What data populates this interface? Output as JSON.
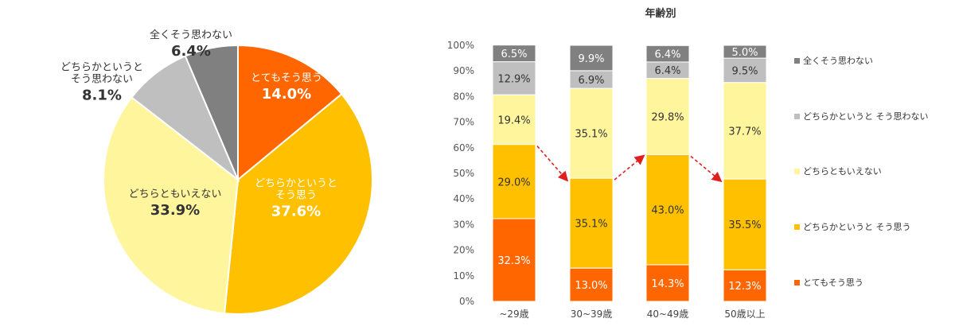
{
  "chart_data": [
    {
      "type": "pie",
      "slices": [
        {
          "label": "とてもそう思う",
          "value": 14.0,
          "pct": "14.0%",
          "color": "#FF6600"
        },
        {
          "label": "どちらかというと\nそう思う",
          "value": 37.6,
          "pct": "37.6%",
          "color": "#FFC000"
        },
        {
          "label": "どちらともいえない",
          "value": 33.9,
          "pct": "33.9%",
          "color": "#FFF59D"
        },
        {
          "label": "どちらかというと\nそう思わない",
          "value": 8.1,
          "pct": "8.1%",
          "color": "#BFBFBF"
        },
        {
          "label": "全くそう思わない",
          "value": 6.4,
          "pct": "6.4%",
          "color": "#808080"
        }
      ]
    },
    {
      "type": "bar",
      "stacked": true,
      "title": "年齢別",
      "categories": [
        "~29歳",
        "30~39歳",
        "40~49歳",
        "50歳以上"
      ],
      "ylim": [
        0,
        100
      ],
      "yticks": [
        "0%",
        "10%",
        "20%",
        "30%",
        "40%",
        "50%",
        "60%",
        "70%",
        "80%",
        "90%",
        "100%"
      ],
      "series": [
        {
          "name": "とてもそう思う",
          "color": "#FF6600",
          "label_color": "#ffffff",
          "values": [
            32.3,
            13.0,
            14.3,
            12.3
          ],
          "labels": [
            "32.3%",
            "13.0%",
            "14.3%",
            "12.3%"
          ]
        },
        {
          "name": "どちらかというと そう思う",
          "color": "#FFC000",
          "label_color": "#333333",
          "values": [
            29.0,
            35.1,
            43.0,
            35.5
          ],
          "labels": [
            "29.0%",
            "35.1%",
            "43.0%",
            "35.5%"
          ]
        },
        {
          "name": "どちらともいえない",
          "color": "#FFF59D",
          "label_color": "#333333",
          "values": [
            19.4,
            35.1,
            29.8,
            37.7
          ],
          "labels": [
            "19.4%",
            "35.1%",
            "29.8%",
            "37.7%"
          ]
        },
        {
          "name": "どちらかというと そう思わない",
          "color": "#BFBFBF",
          "label_color": "#333333",
          "values": [
            12.9,
            6.9,
            6.4,
            9.5
          ],
          "labels": [
            "12.9%",
            "6.9%",
            "6.4%",
            "9.5%"
          ]
        },
        {
          "name": "全くそう思わない",
          "color": "#808080",
          "label_color": "#ffffff",
          "values": [
            6.5,
            9.9,
            6.4,
            5.0
          ],
          "labels": [
            "6.5%",
            "9.9%",
            "6.4%",
            "5.0%"
          ]
        }
      ],
      "legend_order": [
        "全くそう思わない",
        "どちらかというと そう思わない",
        "どちらともいえない",
        "どちらかというと そう思う",
        "とてもそう思う"
      ],
      "arrow_color": "#E02020"
    }
  ]
}
